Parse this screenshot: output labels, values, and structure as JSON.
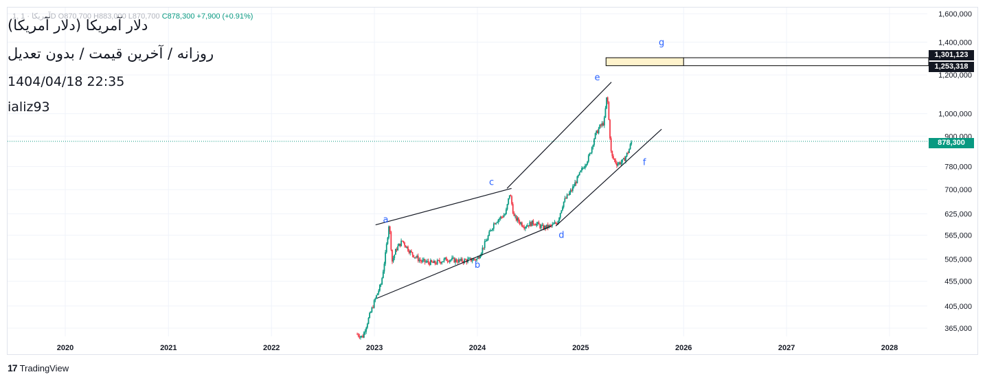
{
  "header": {
    "ohlc_text": "1, آمریکا · 1D  O870,700  H883,000  L870,700",
    "ohlc_close": "C878,300",
    "ohlc_change": "+7,900 (+0.91%)",
    "title": "دلار آمریکا (دلار آمریکا)",
    "subtitle": "روزانه / آخرین قیمت / بدون تعدیل",
    "datetime": "1404/04/18  22:35",
    "author": "ializ93"
  },
  "footer": {
    "logo_mark": "17",
    "logo_text": "TradingView"
  },
  "price_tags": {
    "upper": "1,301,123",
    "lower": "1,253,318",
    "last": "878,300"
  },
  "colors": {
    "up": "#089981",
    "down": "#f23645",
    "label": "#2962ff",
    "grid": "#f0f3fa",
    "box_fill": "#fff3cc",
    "last_price": "#089981"
  },
  "chart_data": {
    "type": "candlestick",
    "title": "",
    "y_scale": "log",
    "ylim": [
      340000,
      1650000
    ],
    "xlim": [
      "2019-07-01",
      "2028-08-01"
    ],
    "x_ticks": [
      "2020",
      "2021",
      "2022",
      "2023",
      "2024",
      "2025",
      "2026",
      "2027",
      "2028"
    ],
    "y_ticks": [
      "1,600,000",
      "1,400,000",
      "1,200,000",
      "1,000,000",
      "900,000",
      "780,000",
      "700,000",
      "625,000",
      "565,000",
      "505,000",
      "455,000",
      "405,000",
      "365,000"
    ],
    "y_tick_values": [
      1600000,
      1400000,
      1200000,
      1000000,
      900000,
      780000,
      700000,
      625000,
      565000,
      505000,
      455000,
      405000,
      365000
    ],
    "price_path": [
      [
        "2022-11-01",
        355000
      ],
      [
        "2022-11-20",
        350000
      ],
      [
        "2022-12-10",
        380000
      ],
      [
        "2023-01-05",
        420000
      ],
      [
        "2023-01-25",
        450000
      ],
      [
        "2023-02-10",
        520000
      ],
      [
        "2023-02-22",
        600000
      ],
      [
        "2023-03-05",
        500000
      ],
      [
        "2023-03-20",
        530000
      ],
      [
        "2023-04-10",
        550000
      ],
      [
        "2023-05-10",
        520000
      ],
      [
        "2023-06-15",
        500000
      ],
      [
        "2023-08-01",
        495000
      ],
      [
        "2023-09-15",
        505000
      ],
      [
        "2023-11-01",
        500000
      ],
      [
        "2024-01-01",
        505000
      ],
      [
        "2024-02-01",
        550000
      ],
      [
        "2024-03-01",
        600000
      ],
      [
        "2024-04-10",
        625000
      ],
      [
        "2024-04-25",
        690000
      ],
      [
        "2024-05-10",
        615000
      ],
      [
        "2024-06-15",
        590000
      ],
      [
        "2024-07-20",
        600000
      ],
      [
        "2024-08-20",
        585000
      ],
      [
        "2024-09-20",
        590000
      ],
      [
        "2024-10-10",
        600000
      ],
      [
        "2024-11-01",
        660000
      ],
      [
        "2024-12-01",
        700000
      ],
      [
        "2025-01-01",
        760000
      ],
      [
        "2025-02-01",
        820000
      ],
      [
        "2025-02-20",
        900000
      ],
      [
        "2025-03-10",
        940000
      ],
      [
        "2025-03-25",
        960000
      ],
      [
        "2025-04-05",
        1100000
      ],
      [
        "2025-04-12",
        950000
      ],
      [
        "2025-04-20",
        820000
      ],
      [
        "2025-05-10",
        790000
      ],
      [
        "2025-06-01",
        800000
      ],
      [
        "2025-06-20",
        840000
      ],
      [
        "2025-07-01",
        878300
      ]
    ],
    "trendlines": [
      {
        "from": [
          "2023-01-05",
          593000
        ],
        "to": [
          "2024-05-01",
          704000
        ]
      },
      {
        "from": [
          "2024-04-15",
          704000
        ],
        "to": [
          "2025-04-20",
          1160000
        ]
      },
      {
        "from": [
          "2023-01-10",
          420000
        ],
        "to": [
          "2024-09-20",
          590000
        ]
      },
      {
        "from": [
          "2024-10-05",
          590000
        ],
        "to": [
          "2025-10-15",
          930000
        ]
      }
    ],
    "wave_labels": [
      {
        "text": "a",
        "date": "2023-02-10",
        "value": 600000
      },
      {
        "text": "b",
        "date": "2024-01-01",
        "value": 485000
      },
      {
        "text": "c",
        "date": "2024-02-20",
        "value": 715000
      },
      {
        "text": "d",
        "date": "2024-10-25",
        "value": 558000
      },
      {
        "text": "e",
        "date": "2025-03-01",
        "value": 1170000
      },
      {
        "text": "f",
        "date": "2025-08-15",
        "value": 785000
      },
      {
        "text": "g",
        "date": "2025-10-15",
        "value": 1380000
      }
    ],
    "target_zone": {
      "from": "2025-04-01",
      "to": "2028-08-01",
      "high": 1301123,
      "low": 1253318,
      "shaded_until": "2026-01-01"
    },
    "last_price": 878300
  }
}
